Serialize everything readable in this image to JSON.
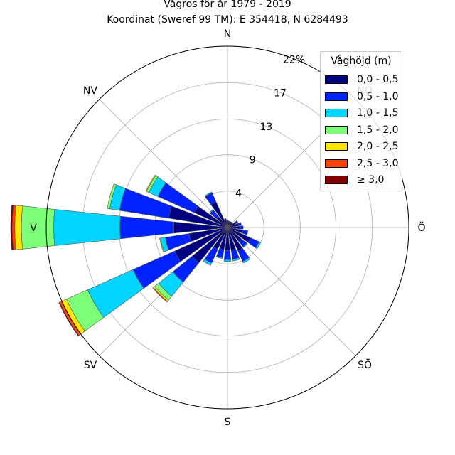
{
  "chart_data": {
    "type": "windrose",
    "title": "Vågros för år 1979 - 2019",
    "subtitle": "Koordinat (Sweref 99 TM): E 354418, N 6284493",
    "directions": [
      "N",
      "NO",
      "Ö",
      "SÖ",
      "S",
      "SV",
      "V",
      "NV"
    ],
    "radial_ticks": [
      "4",
      "9",
      "13",
      "17",
      "22%"
    ],
    "radial_tick_values": [
      4.4,
      8.8,
      13.1,
      17.5,
      21.9
    ],
    "rmax": 21.9,
    "legend_title": "Våghöjd (m)",
    "legend_location": "upper right",
    "grid": true,
    "bins": [
      {
        "label": "0,0 - 0,5",
        "color": "#000080"
      },
      {
        "label": "0,5 - 1,0",
        "color": "#0022ff"
      },
      {
        "label": "1,0 - 1,5",
        "color": "#00d4ff"
      },
      {
        "label": "1,5 - 2,0",
        "color": "#7dff7a"
      },
      {
        "label": "2,0 - 2,5",
        "color": "#ffe600"
      },
      {
        "label": "2,5 - 3,0",
        "color": "#ff4600"
      },
      {
        "label": "≥ 3,0",
        "color": "#800000"
      }
    ],
    "sectors": [
      {
        "angle": 0,
        "values": [
          0.8,
          0.1,
          0,
          0,
          0,
          0,
          0
        ]
      },
      {
        "angle": 15,
        "values": [
          0.7,
          0.1,
          0,
          0,
          0,
          0,
          0
        ]
      },
      {
        "angle": 30,
        "values": [
          0.8,
          0,
          0,
          0,
          0,
          0,
          0
        ]
      },
      {
        "angle": 45,
        "values": [
          0.8,
          0,
          0,
          0,
          0,
          0,
          0
        ]
      },
      {
        "angle": 60,
        "values": [
          1.1,
          0.3,
          0,
          0,
          0,
          0,
          0
        ]
      },
      {
        "angle": 75,
        "values": [
          1.3,
          0.4,
          0,
          0,
          0,
          0,
          0
        ]
      },
      {
        "angle": 90,
        "values": [
          1.5,
          0.4,
          0,
          0,
          0,
          0,
          0
        ]
      },
      {
        "angle": 105,
        "values": [
          1.9,
          0.6,
          0,
          0,
          0,
          0,
          0
        ]
      },
      {
        "angle": 120,
        "values": [
          3.0,
          1.2,
          0.2,
          0,
          0,
          0,
          0
        ]
      },
      {
        "angle": 135,
        "values": [
          2.2,
          0.8,
          0.1,
          0,
          0,
          0,
          0
        ]
      },
      {
        "angle": 150,
        "values": [
          3.1,
          1.4,
          0.2,
          0,
          0,
          0,
          0
        ]
      },
      {
        "angle": 165,
        "values": [
          2.8,
          1.1,
          0.2,
          0,
          0,
          0,
          0
        ]
      },
      {
        "angle": 180,
        "values": [
          2.8,
          1.1,
          0.2,
          0,
          0,
          0,
          0
        ]
      },
      {
        "angle": 195,
        "values": [
          2.7,
          1.0,
          0.1,
          0,
          0,
          0,
          0
        ]
      },
      {
        "angle": 210,
        "values": [
          2.9,
          1.8,
          0.3,
          0,
          0,
          0,
          0
        ]
      },
      {
        "angle": 225,
        "values": [
          5.5,
          3.0,
          2.2,
          0.6,
          0.2,
          0.1,
          0
        ]
      },
      {
        "angle": 240,
        "values": [
          7.0,
          5.5,
          6.0,
          2.8,
          0.6,
          0.3,
          0.1
        ]
      },
      {
        "angle": 255,
        "values": [
          4.7,
          2.9,
          0.6,
          0.1,
          0,
          0,
          0
        ]
      },
      {
        "angle": 270,
        "values": [
          6.5,
          6.5,
          8.0,
          3.9,
          0.8,
          0.3,
          0.2
        ]
      },
      {
        "angle": 285,
        "values": [
          7.2,
          6.0,
          1.2,
          0.3,
          0,
          0,
          0
        ]
      },
      {
        "angle": 300,
        "values": [
          4.4,
          4.8,
          1.2,
          0.3,
          0.1,
          0,
          0
        ]
      },
      {
        "angle": 315,
        "values": [
          1.7,
          1.0,
          0.1,
          0,
          0,
          0,
          0
        ]
      },
      {
        "angle": 330,
        "values": [
          3.4,
          1.2,
          0.1,
          0,
          0,
          0,
          0
        ]
      },
      {
        "angle": 345,
        "values": [
          0.9,
          0.2,
          0,
          0,
          0,
          0,
          0
        ]
      }
    ]
  }
}
